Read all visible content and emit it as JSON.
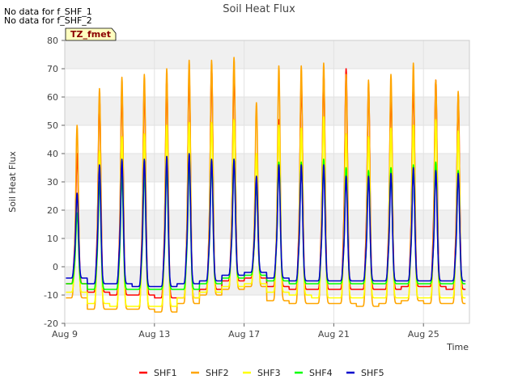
{
  "notes": [
    "No data for f_SHF_1",
    "No data for f_SHF_2"
  ],
  "tz_label": "TZ_fmet",
  "chart_data": {
    "type": "line",
    "title": "Soil Heat Flux",
    "xlabel": "Time",
    "ylabel": "Soil Heat Flux",
    "ylim": [
      -20,
      80
    ],
    "yticks": [
      "-20",
      "-10",
      "0",
      "10",
      "20",
      "30",
      "40",
      "50",
      "60",
      "70",
      "80"
    ],
    "xlim_days": [
      9,
      27.05
    ],
    "xticks": [
      {
        "day": 9,
        "label": "Aug 9"
      },
      {
        "day": 13,
        "label": "Aug 13"
      },
      {
        "day": 17,
        "label": "Aug 17"
      },
      {
        "day": 21,
        "label": "Aug 21"
      },
      {
        "day": 25,
        "label": "Aug 25"
      }
    ],
    "grid": true,
    "legend_position": "bottom",
    "days": [
      9,
      10,
      11,
      12,
      13,
      14,
      15,
      16,
      17,
      18,
      19,
      20,
      21,
      22,
      23,
      24,
      25,
      26
    ],
    "series": [
      {
        "name": "SHF1",
        "color": "#ff0000",
        "peaks": [
          40,
          59,
          62,
          63,
          66,
          68,
          70,
          69,
          30,
          52,
          66,
          68,
          70,
          64,
          62,
          65,
          66,
          60
        ],
        "troughs": [
          -6,
          -9,
          -10,
          -10,
          -11,
          -11,
          -8,
          -5,
          -4,
          -7,
          -8,
          -8,
          -8,
          -8,
          -8,
          -7,
          -7,
          -8
        ]
      },
      {
        "name": "SHF2",
        "color": "#ffa500",
        "peaks": [
          50,
          63,
          67,
          68,
          70,
          73,
          73,
          74,
          58,
          71,
          71,
          72,
          68,
          66,
          68,
          72,
          66,
          62
        ],
        "troughs": [
          -11,
          -15,
          -15,
          -15,
          -16,
          -13,
          -10,
          -8,
          -7,
          -12,
          -13,
          -13,
          -13,
          -14,
          -13,
          -12,
          -13,
          -13
        ]
      },
      {
        "name": "SHF3",
        "color": "#ffff00",
        "peaks": [
          22,
          41,
          46,
          47,
          50,
          51,
          51,
          52,
          40,
          50,
          49,
          53,
          47,
          46,
          49,
          50,
          52,
          48
        ],
        "troughs": [
          -9,
          -13,
          -14,
          -14,
          -14,
          -11,
          -9,
          -7,
          -6,
          -9,
          -10,
          -11,
          -11,
          -11,
          -11,
          -11,
          -11,
          -11
        ]
      },
      {
        "name": "SHF4",
        "color": "#00ff00",
        "peaks": [
          19,
          30,
          32,
          33,
          35,
          36,
          37,
          38,
          30,
          37,
          37,
          38,
          35,
          34,
          35,
          36,
          37,
          34
        ],
        "troughs": [
          -6,
          -8,
          -8,
          -8,
          -8,
          -8,
          -6,
          -4,
          -3,
          -5,
          -6,
          -6,
          -6,
          -6,
          -6,
          -6,
          -6,
          -6
        ]
      },
      {
        "name": "SHF5",
        "color": "#0000cc",
        "peaks": [
          26,
          36,
          38,
          38,
          39,
          40,
          38,
          38,
          32,
          36,
          36,
          36,
          32,
          32,
          33,
          35,
          34,
          33
        ],
        "troughs": [
          -4,
          -6,
          -6,
          -7,
          -7,
          -6,
          -5,
          -3,
          -2,
          -4,
          -5,
          -5,
          -5,
          -5,
          -5,
          -5,
          -5,
          -5
        ]
      }
    ]
  }
}
